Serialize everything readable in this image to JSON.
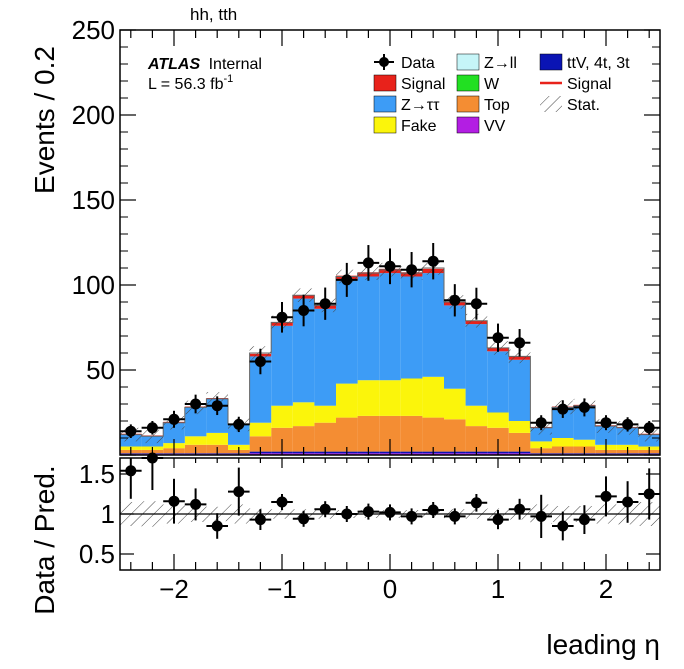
{
  "header": {
    "title": "hh, tth"
  },
  "atlas": {
    "brand": "ATLAS",
    "tag": "Internal",
    "lumi_text": "L = 56.3 fb",
    "lumi_exp": "-1"
  },
  "legend": {
    "entries": [
      {
        "label": "Data",
        "kind": "data"
      },
      {
        "label": "Z→ll",
        "kind": "fill",
        "color": "#c6f5f8"
      },
      {
        "label": "ttV, 4t, 3t",
        "kind": "fill",
        "color": "#0a14b4"
      },
      {
        "label": "Signal",
        "kind": "fill",
        "color": "#e8221b"
      },
      {
        "label": "W",
        "kind": "fill",
        "color": "#22e022"
      },
      {
        "label": "Signal",
        "kind": "line",
        "color": "#e8221b"
      },
      {
        "label": "Z→ττ",
        "kind": "fill",
        "color": "#3d9cf6"
      },
      {
        "label": "Top",
        "kind": "fill",
        "color": "#f48d33"
      },
      {
        "label": "Stat.",
        "kind": "hatch"
      },
      {
        "label": "Fake",
        "kind": "fill",
        "color": "#fbf50b"
      },
      {
        "label": "VV",
        "kind": "fill",
        "color": "#b31ee3"
      }
    ]
  },
  "chart_data": [
    {
      "type": "bar",
      "stacked": true,
      "xlabel": "leading η",
      "ylabel": "Events / 0.2",
      "xlim": [
        -2.5,
        2.5
      ],
      "ylim": [
        0,
        250
      ],
      "yticks": [
        0,
        50,
        100,
        150,
        200,
        250
      ],
      "xticks": [
        -2,
        -1,
        0,
        1,
        2
      ],
      "bin_edges": [
        -2.5,
        -2.3,
        -2.1,
        -1.9,
        -1.7,
        -1.5,
        -1.3,
        -1.1,
        -0.9,
        -0.7,
        -0.5,
        -0.3,
        -0.1,
        0.1,
        0.3,
        0.5,
        0.7,
        0.9,
        1.1,
        1.3,
        1.5,
        1.7,
        1.9,
        2.1,
        2.3,
        2.5
      ],
      "series": [
        {
          "name": "VV",
          "color": "#b31ee3",
          "values": [
            0.5,
            0.5,
            0.5,
            0.5,
            0.5,
            0.5,
            1,
            1,
            1,
            1,
            1,
            1,
            1,
            1,
            1,
            1,
            1,
            1,
            1,
            0.5,
            0.5,
            0.5,
            0.5,
            0.5,
            0.5
          ]
        },
        {
          "name": "ttV, 4t, 3t",
          "color": "#0a14b4",
          "values": [
            0.5,
            0.5,
            0.5,
            0.5,
            0.5,
            0.5,
            1,
            1,
            1,
            1,
            1,
            1,
            1,
            1,
            1,
            1,
            1,
            1,
            1,
            0.5,
            0.5,
            0.5,
            0.5,
            0.5,
            0.5
          ]
        },
        {
          "name": "Top",
          "color": "#f48d33",
          "values": [
            2,
            2,
            3,
            5,
            5,
            2,
            9,
            14,
            15,
            17,
            20,
            21,
            21,
            21,
            20,
            19,
            15,
            14,
            11,
            3,
            4,
            4,
            2,
            2,
            2
          ]
        },
        {
          "name": "Fake",
          "color": "#fbf50b",
          "values": [
            2,
            2,
            3,
            5,
            7,
            3,
            8,
            13,
            14,
            10,
            20,
            21,
            21,
            22,
            24,
            18,
            12,
            9,
            7,
            4,
            5,
            4,
            3,
            3,
            2
          ]
        },
        {
          "name": "W",
          "color": "#22e022",
          "values": [
            0,
            0,
            0,
            0,
            0,
            0,
            0,
            0,
            0,
            0,
            0,
            0,
            0,
            0,
            0,
            0,
            0,
            0,
            0,
            0,
            0,
            0,
            0,
            0,
            0
          ]
        },
        {
          "name": "Z→ττ",
          "color": "#3d9cf6",
          "values": [
            7,
            6,
            12,
            17,
            20,
            12,
            39,
            47,
            61,
            57,
            61,
            61,
            63,
            60,
            61,
            49,
            48,
            36,
            36,
            8,
            18,
            20,
            11,
            10,
            7
          ]
        },
        {
          "name": "Z→ll",
          "color": "#c6f5f8",
          "values": [
            0,
            0,
            0,
            0,
            0,
            0,
            0,
            0,
            0,
            0,
            0,
            0,
            0,
            0,
            0,
            0,
            0,
            0,
            0,
            0,
            0,
            0,
            0,
            0,
            0
          ]
        },
        {
          "name": "Signal",
          "color": "#e8221b",
          "values": [
            0.5,
            0.5,
            0.5,
            0.5,
            0.5,
            0.5,
            1.5,
            2,
            2,
            2,
            2.5,
            2.5,
            2.5,
            2.5,
            2.5,
            2,
            2,
            2,
            2,
            0.5,
            0.5,
            0.5,
            0.5,
            0.5,
            0.5
          ]
        }
      ],
      "total": [
        12,
        11,
        19,
        28,
        33,
        18,
        60,
        78,
        94,
        88,
        105,
        107,
        109,
        107,
        110,
        90,
        79,
        63,
        58,
        16,
        28,
        29,
        17,
        16,
        12
      ],
      "data": {
        "name": "Data",
        "x": [
          -2.4,
          -2.2,
          -2.0,
          -1.8,
          -1.6,
          -1.4,
          -1.2,
          -1.0,
          -0.8,
          -0.6,
          -0.4,
          -0.2,
          0.0,
          0.2,
          0.4,
          0.6,
          0.8,
          1.0,
          1.2,
          1.4,
          1.6,
          1.8,
          2.0,
          2.2,
          2.4
        ],
        "y": [
          14,
          16,
          21,
          30,
          29,
          18,
          55,
          81,
          85,
          89,
          103,
          113,
          111,
          109,
          114,
          91,
          89,
          69,
          66,
          19,
          27,
          28,
          19,
          18,
          16
        ],
        "err": [
          4,
          4,
          5,
          5.5,
          5.5,
          4.5,
          7.5,
          9,
          9.3,
          9.5,
          10,
          10.5,
          10.5,
          10.4,
          10.7,
          9.5,
          9.4,
          8.3,
          8.1,
          4.4,
          5.2,
          5.3,
          4.4,
          4.2,
          4
        ]
      }
    },
    {
      "type": "scatter",
      "xlabel": "leading η",
      "ylabel": "Data / Pred.",
      "xlim": [
        -2.5,
        2.5
      ],
      "ylim": [
        0.3,
        1.7
      ],
      "yticks": [
        0.5,
        1,
        1.5
      ],
      "reference_line": 1,
      "x": [
        -2.4,
        -2.2,
        -2.0,
        -1.8,
        -1.6,
        -1.4,
        -1.2,
        -1.0,
        -0.8,
        -0.6,
        -0.4,
        -0.2,
        0.0,
        0.2,
        0.4,
        0.6,
        0.8,
        1.0,
        1.2,
        1.4,
        1.6,
        1.8,
        2.0,
        2.2,
        2.4
      ],
      "y": [
        1.54,
        1.7,
        1.16,
        1.12,
        0.85,
        1.28,
        0.93,
        1.15,
        0.94,
        1.06,
        1.0,
        1.03,
        1.02,
        0.97,
        1.05,
        0.97,
        1.14,
        0.93,
        1.06,
        0.97,
        0.85,
        0.93,
        1.22,
        1.15,
        1.25
      ],
      "err": [
        0.35,
        0.4,
        0.28,
        0.2,
        0.16,
        0.3,
        0.13,
        0.1,
        0.1,
        0.1,
        0.1,
        0.1,
        0.1,
        0.1,
        0.1,
        0.1,
        0.11,
        0.12,
        0.13,
        0.27,
        0.18,
        0.18,
        0.25,
        0.26,
        0.32
      ],
      "stat_band": [
        0.15,
        0.16,
        0.12,
        0.1,
        0.09,
        0.12,
        0.07,
        0.06,
        0.06,
        0.06,
        0.05,
        0.05,
        0.05,
        0.05,
        0.05,
        0.06,
        0.06,
        0.07,
        0.07,
        0.12,
        0.1,
        0.1,
        0.12,
        0.13,
        0.15
      ]
    }
  ]
}
